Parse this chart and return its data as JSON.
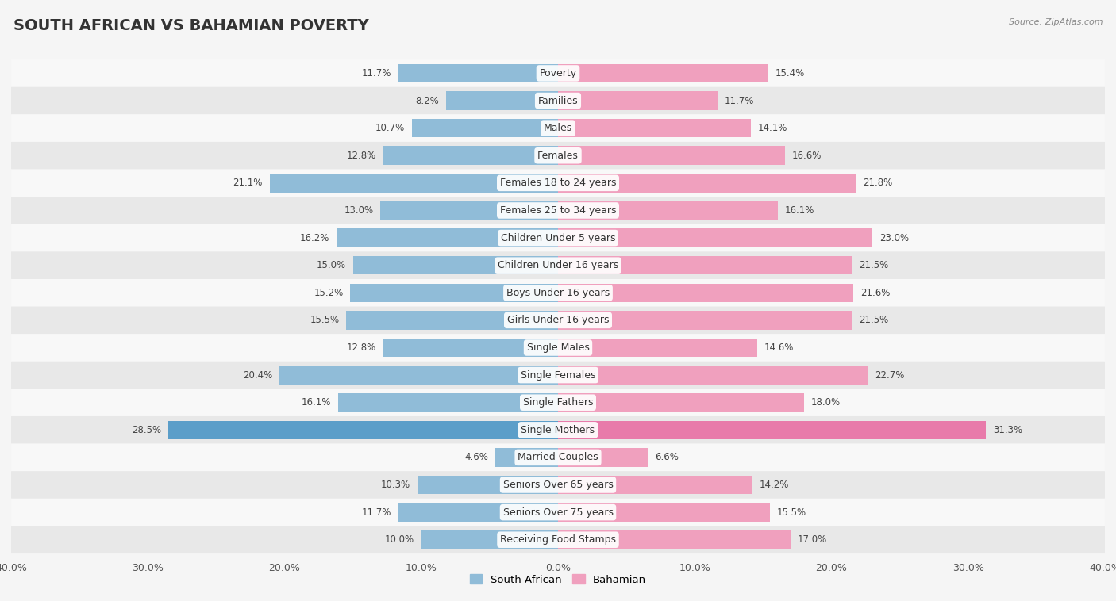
{
  "title": "SOUTH AFRICAN VS BAHAMIAN POVERTY",
  "source": "Source: ZipAtlas.com",
  "categories": [
    "Poverty",
    "Families",
    "Males",
    "Females",
    "Females 18 to 24 years",
    "Females 25 to 34 years",
    "Children Under 5 years",
    "Children Under 16 years",
    "Boys Under 16 years",
    "Girls Under 16 years",
    "Single Males",
    "Single Females",
    "Single Fathers",
    "Single Mothers",
    "Married Couples",
    "Seniors Over 65 years",
    "Seniors Over 75 years",
    "Receiving Food Stamps"
  ],
  "south_african": [
    11.7,
    8.2,
    10.7,
    12.8,
    21.1,
    13.0,
    16.2,
    15.0,
    15.2,
    15.5,
    12.8,
    20.4,
    16.1,
    28.5,
    4.6,
    10.3,
    11.7,
    10.0
  ],
  "bahamian": [
    15.4,
    11.7,
    14.1,
    16.6,
    21.8,
    16.1,
    23.0,
    21.5,
    21.6,
    21.5,
    14.6,
    22.7,
    18.0,
    31.3,
    6.6,
    14.2,
    15.5,
    17.0
  ],
  "south_african_color": "#90bcd8",
  "bahamian_color": "#f0a0be",
  "south_african_highlight_color": "#5b9ec9",
  "bahamian_highlight_color": "#e87aaa",
  "highlight_row": 13,
  "bar_height": 0.68,
  "xlim": 40.0,
  "bg_color": "#f0f0f0",
  "row_bg_even": "#e8e8e8",
  "row_bg_odd": "#f8f8f8",
  "title_fontsize": 14,
  "label_fontsize": 9,
  "value_fontsize": 8.5,
  "legend_labels": [
    "South African",
    "Bahamian"
  ],
  "xtick_fontsize": 9
}
